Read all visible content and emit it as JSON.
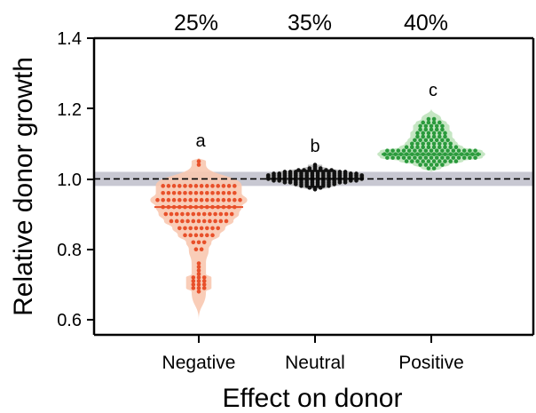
{
  "chart_data": {
    "type": "violin-dotplot",
    "title": "",
    "xlabel": "Effect on donor",
    "ylabel": "Relative donor growth",
    "ylim": [
      0.56,
      1.4
    ],
    "yticks": [
      "0.6",
      "0.8",
      "1.0",
      "1.2",
      "1.4"
    ],
    "categories": [
      "Negative",
      "Neutral",
      "Positive"
    ],
    "percentages": [
      "25%",
      "35%",
      "40%"
    ],
    "letters": [
      "a",
      "b",
      "c"
    ],
    "reference_line": 1.0,
    "reference_band": [
      0.98,
      1.02
    ],
    "colors": {
      "Negative": "#e8502a",
      "Neutral": "#111111",
      "Positive": "#2a9a3c",
      "Negative_fill": "#f8c8b0",
      "Neutral_fill": "#b8b8b8",
      "Positive_fill": "#bfe3bd",
      "band": "#c8c8d2"
    },
    "series": [
      {
        "name": "Negative",
        "median": 0.92,
        "min": 0.6,
        "max": 1.06,
        "values": [
          1.05,
          1.04,
          0.98,
          0.98,
          0.98,
          0.98,
          0.98,
          0.98,
          0.98,
          0.98,
          0.98,
          0.98,
          0.98,
          0.98,
          0.98,
          0.98,
          0.96,
          0.96,
          0.96,
          0.96,
          0.96,
          0.96,
          0.96,
          0.96,
          0.96,
          0.96,
          0.96,
          0.96,
          0.96,
          0.96,
          0.94,
          0.94,
          0.94,
          0.94,
          0.94,
          0.94,
          0.94,
          0.94,
          0.94,
          0.94,
          0.94,
          0.94,
          0.94,
          0.94,
          0.94,
          0.94,
          0.92,
          0.92,
          0.92,
          0.92,
          0.92,
          0.92,
          0.92,
          0.92,
          0.92,
          0.92,
          0.92,
          0.92,
          0.92,
          0.92,
          0.9,
          0.9,
          0.9,
          0.9,
          0.9,
          0.9,
          0.9,
          0.9,
          0.9,
          0.9,
          0.9,
          0.9,
          0.9,
          0.88,
          0.88,
          0.88,
          0.88,
          0.88,
          0.88,
          0.88,
          0.88,
          0.88,
          0.88,
          0.88,
          0.86,
          0.86,
          0.86,
          0.86,
          0.86,
          0.86,
          0.86,
          0.86,
          0.84,
          0.84,
          0.84,
          0.84,
          0.84,
          0.84,
          0.82,
          0.82,
          0.82,
          0.8,
          0.8,
          0.76,
          0.75,
          0.74,
          0.73,
          0.72,
          0.72,
          0.72,
          0.71,
          0.71,
          0.71,
          0.7,
          0.7,
          0.7,
          0.69,
          0.69,
          0.69,
          0.68
        ]
      },
      {
        "name": "Neutral",
        "median": 1.0,
        "min": 0.97,
        "max": 1.04,
        "values": [
          1.04,
          1.035,
          1.03,
          1.03,
          1.03,
          1.025,
          1.025,
          1.025,
          1.025,
          1.025,
          1.025,
          1.025,
          1.02,
          1.02,
          1.02,
          1.02,
          1.02,
          1.02,
          1.02,
          1.02,
          1.02,
          1.02,
          1.02,
          1.02,
          1.015,
          1.015,
          1.015,
          1.015,
          1.015,
          1.015,
          1.015,
          1.015,
          1.015,
          1.015,
          1.015,
          1.015,
          1.015,
          1.015,
          1.015,
          1.015,
          1.01,
          1.01,
          1.01,
          1.01,
          1.01,
          1.01,
          1.01,
          1.01,
          1.01,
          1.01,
          1.01,
          1.01,
          1.01,
          1.01,
          1.01,
          1.01,
          1.01,
          1.01,
          1.005,
          1.005,
          1.005,
          1.005,
          1.005,
          1.005,
          1.005,
          1.005,
          1.005,
          1.005,
          1.005,
          1.005,
          1.005,
          1.005,
          1.005,
          1.005,
          1.005,
          1.005,
          1.0,
          1.0,
          1.0,
          1.0,
          1.0,
          1.0,
          1.0,
          1.0,
          1.0,
          1.0,
          1.0,
          1.0,
          1.0,
          1.0,
          1.0,
          1.0,
          1.0,
          1.0,
          0.995,
          0.995,
          0.995,
          0.995,
          0.995,
          0.995,
          0.995,
          0.995,
          0.995,
          0.995,
          0.995,
          0.995,
          0.995,
          0.995,
          0.995,
          0.995,
          0.99,
          0.99,
          0.99,
          0.99,
          0.99,
          0.99,
          0.99,
          0.99,
          0.99,
          0.99,
          0.99,
          0.99,
          0.985,
          0.985,
          0.985,
          0.985,
          0.985,
          0.985,
          0.985,
          0.985,
          0.98,
          0.98,
          0.98,
          0.98,
          0.98,
          0.98,
          0.975,
          0.975,
          0.975,
          0.97
        ]
      },
      {
        "name": "Positive",
        "median": 1.07,
        "min": 1.02,
        "max": 1.2,
        "values": [
          1.17,
          1.17,
          1.16,
          1.16,
          1.16,
          1.16,
          1.15,
          1.15,
          1.15,
          1.15,
          1.15,
          1.14,
          1.14,
          1.14,
          1.14,
          1.14,
          1.13,
          1.13,
          1.13,
          1.13,
          1.13,
          1.13,
          1.12,
          1.12,
          1.12,
          1.12,
          1.12,
          1.12,
          1.11,
          1.11,
          1.11,
          1.11,
          1.11,
          1.11,
          1.11,
          1.1,
          1.1,
          1.1,
          1.1,
          1.1,
          1.1,
          1.1,
          1.1,
          1.09,
          1.09,
          1.09,
          1.09,
          1.09,
          1.09,
          1.09,
          1.09,
          1.09,
          1.09,
          1.08,
          1.08,
          1.08,
          1.08,
          1.08,
          1.08,
          1.08,
          1.08,
          1.08,
          1.08,
          1.08,
          1.08,
          1.08,
          1.08,
          1.08,
          1.08,
          1.08,
          1.07,
          1.07,
          1.07,
          1.07,
          1.07,
          1.07,
          1.07,
          1.07,
          1.07,
          1.07,
          1.07,
          1.07,
          1.07,
          1.07,
          1.07,
          1.07,
          1.07,
          1.07,
          1.06,
          1.06,
          1.06,
          1.06,
          1.06,
          1.06,
          1.06,
          1.06,
          1.06,
          1.06,
          1.06,
          1.06,
          1.06,
          1.06,
          1.06,
          1.06,
          1.06,
          1.05,
          1.05,
          1.05,
          1.05,
          1.05,
          1.05,
          1.05,
          1.05,
          1.05,
          1.05,
          1.04,
          1.04,
          1.04,
          1.04,
          1.04,
          1.03,
          1.03
        ]
      }
    ]
  }
}
